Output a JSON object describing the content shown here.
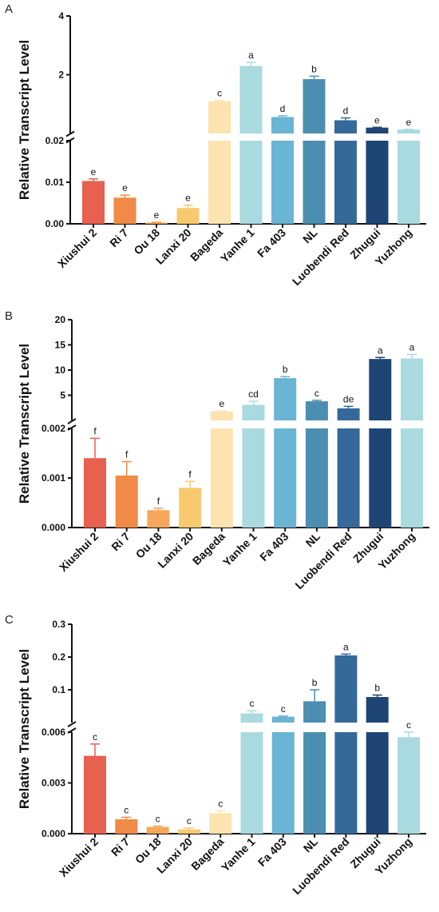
{
  "chart_data": [
    {
      "type": "bar",
      "panel": "A",
      "ylabel": "Relative Transcript Level",
      "broken_axis": true,
      "lower_range": [
        0,
        0.02
      ],
      "lower_ticks": [
        "0.00",
        "0.01",
        "0.02"
      ],
      "upper_range": [
        0,
        4
      ],
      "upper_ticks": [
        "2",
        "4"
      ],
      "categories": [
        "Xiushui 2",
        "Ri 7",
        "Ou 18",
        "Lanxi 20",
        "Bageda",
        "Yanhe 1",
        "Fa 403",
        "NL",
        "Luobendi Red",
        "Zhugui",
        "Yuzhong"
      ],
      "values": [
        0.0103,
        0.0063,
        0.0003,
        0.0038,
        1.1,
        2.3,
        0.56,
        1.85,
        0.45,
        0.2,
        0.13
      ],
      "errors": [
        0.0005,
        0.0006,
        0.0001,
        0.0007,
        0.03,
        0.12,
        0.04,
        0.1,
        0.08,
        0.01,
        0.01
      ],
      "significance": [
        "e",
        "e",
        "e",
        "e",
        "c",
        "a",
        "d",
        "b",
        "d",
        "e",
        "e"
      ]
    },
    {
      "type": "bar",
      "panel": "B",
      "ylabel": "Relative Transcript Level",
      "broken_axis": true,
      "lower_range": [
        0,
        0.002
      ],
      "lower_ticks": [
        "0.000",
        "0.001",
        "0.002"
      ],
      "upper_range": [
        0,
        20
      ],
      "upper_ticks": [
        "5",
        "10",
        "15",
        "20"
      ],
      "categories": [
        "Xiushui 2",
        "Ri 7",
        "Ou 18",
        "Lanxi 20",
        "Bageda",
        "Yanhe 1",
        "Fa 403",
        "NL",
        "Luobendi Red",
        "Zhugui",
        "Yuzhong"
      ],
      "values": [
        0.0014,
        0.00105,
        0.00035,
        0.0008,
        1.8,
        3.1,
        8.4,
        3.8,
        2.4,
        12.2,
        12.3
      ],
      "errors": [
        0.0004,
        0.00028,
        4e-05,
        0.00013,
        0.1,
        0.7,
        0.3,
        0.2,
        0.4,
        0.3,
        0.8
      ],
      "significance": [
        "f",
        "f",
        "f",
        "f",
        "e",
        "cd",
        "b",
        "c",
        "de",
        "a",
        "a"
      ]
    },
    {
      "type": "bar",
      "panel": "C",
      "ylabel": "Relative Transcript Level",
      "broken_axis": true,
      "lower_range": [
        0,
        0.006
      ],
      "lower_ticks": [
        "0.000",
        "0.003",
        "0.006"
      ],
      "upper_range": [
        0,
        0.3
      ],
      "upper_ticks": [
        "0.1",
        "0.2",
        "0.3"
      ],
      "categories": [
        "Xiushui 2",
        "Ri 7",
        "Ou 18",
        "Lanxi 20",
        "Bageda",
        "Yanhe 1",
        "Fa 403",
        "NL",
        "Luobendi Red",
        "Zhugui",
        "Yuzhong"
      ],
      "values": [
        0.0046,
        0.00085,
        0.0004,
        0.00025,
        0.0012,
        0.028,
        0.018,
        0.065,
        0.205,
        0.078,
        0.0057
      ],
      "errors": [
        0.0007,
        0.00012,
        5e-05,
        8e-05,
        0.00015,
        0.008,
        0.002,
        0.035,
        0.004,
        0.006,
        0.0003
      ],
      "significance": [
        "c",
        "c",
        "c",
        "c",
        "c",
        "c",
        "c",
        "b",
        "a",
        "b",
        "c"
      ]
    }
  ],
  "colors": [
    "#e8604f",
    "#f08a46",
    "#f5a85b",
    "#f8c96f",
    "#fde3b0",
    "#a9dadf",
    "#6ab4d4",
    "#4c8eb1",
    "#35699a",
    "#1f4575",
    "#a9dadf"
  ]
}
